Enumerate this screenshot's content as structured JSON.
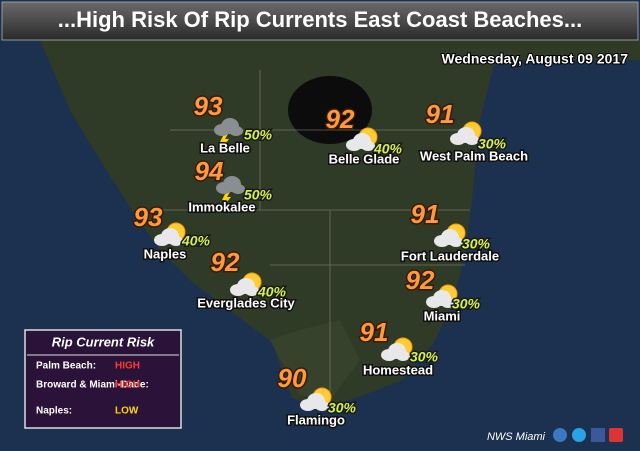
{
  "header": {
    "title": "...High Risk Of Rip Currents East Coast Beaches...",
    "date": "Wednesday, August 09 2017"
  },
  "cities": [
    {
      "name": "La Belle",
      "temp": 93,
      "rain": "50%"
    },
    {
      "name": "Immokalee",
      "temp": 94,
      "rain": "50%"
    },
    {
      "name": "Naples",
      "temp": 93,
      "rain": "40%"
    },
    {
      "name": "Everglades City",
      "temp": 92,
      "rain": "40%"
    },
    {
      "name": "Belle Glade",
      "temp": 92,
      "rain": "40%"
    },
    {
      "name": "West Palm Beach",
      "temp": 91,
      "rain": "30%"
    },
    {
      "name": "Fort Lauderdale",
      "temp": 91,
      "rain": "30%"
    },
    {
      "name": "Miami",
      "temp": 92,
      "rain": "30%"
    },
    {
      "name": "Homestead",
      "temp": 91,
      "rain": "30%"
    },
    {
      "name": "Flamingo",
      "temp": 90,
      "rain": "30%"
    }
  ],
  "risk": {
    "title": "Rip Current Risk",
    "rows": [
      {
        "area": "Palm Beach:",
        "level": "HIGH"
      },
      {
        "area": "Broward & Miami-Dade:",
        "level": "HIGH"
      },
      {
        "area": "Naples:",
        "level": "LOW"
      }
    ]
  },
  "credit": "NWS Miami"
}
